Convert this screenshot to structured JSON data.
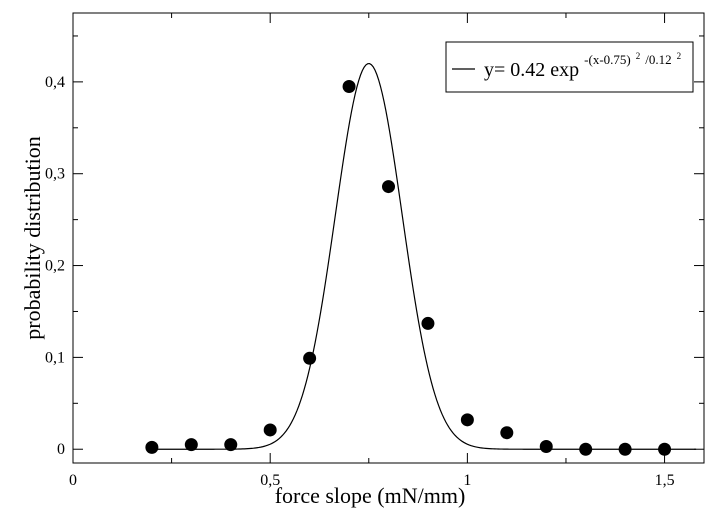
{
  "chart_data": {
    "type": "scatter",
    "xlabel": "force slope (mN/mm)",
    "ylabel": "probability distribution",
    "xlim": [
      0,
      1.6
    ],
    "ylim": [
      -0.015,
      0.475
    ],
    "x_ticks": [
      0,
      0.5,
      1,
      1.5
    ],
    "x_tick_labels": [
      "0",
      "0,5",
      "1",
      "1,5"
    ],
    "y_ticks": [
      0,
      0.1,
      0.2,
      0.3,
      0.4
    ],
    "y_tick_labels": [
      "0",
      "0,1",
      "0,2",
      "0,3",
      "0,4"
    ],
    "grid": false,
    "legend_position": "top-right",
    "series": [
      {
        "kind": "points",
        "marker": "filled-circle",
        "color": "#000000",
        "x": [
          0.2,
          0.3,
          0.4,
          0.5,
          0.6,
          0.7,
          0.8,
          0.9,
          1.0,
          1.1,
          1.2,
          1.3,
          1.4,
          1.5
        ],
        "y": [
          0.002,
          0.005,
          0.005,
          0.021,
          0.099,
          0.395,
          0.286,
          0.137,
          0.032,
          0.018,
          0.003,
          0.0,
          0.0,
          0.0
        ]
      },
      {
        "kind": "fit-line",
        "color": "#000000",
        "formula": {
          "amplitude": 0.42,
          "center": 0.75,
          "width": 0.12
        },
        "x_range": [
          0.2,
          1.58
        ],
        "legend": {
          "prefix": "y= 0.42 exp",
          "exp_part1": "-(x-0.75)",
          "exp_sq1": "2",
          "exp_part2": "/0.12",
          "exp_sq2": "2"
        }
      }
    ]
  }
}
